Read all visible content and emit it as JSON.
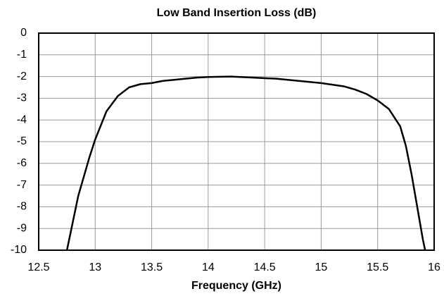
{
  "chart_data": {
    "type": "line",
    "title": "Low Band Insertion Loss (dB)",
    "x_label": "Frequency (GHz)",
    "x": [
      12.75,
      12.85,
      12.95,
      13.0,
      13.1,
      13.2,
      13.3,
      13.4,
      13.5,
      13.6,
      13.7,
      13.8,
      13.9,
      14.0,
      14.2,
      14.4,
      14.6,
      14.8,
      15.0,
      15.2,
      15.3,
      15.4,
      15.5,
      15.6,
      15.7,
      15.75,
      15.8,
      15.85,
      15.9,
      15.92
    ],
    "series": [
      {
        "name": "Insertion Loss",
        "color": "#000000",
        "values": [
          -10,
          -7.5,
          -5.7,
          -4.9,
          -3.6,
          -2.9,
          -2.5,
          -2.35,
          -2.3,
          -2.2,
          -2.15,
          -2.1,
          -2.05,
          -2.02,
          -2.0,
          -2.05,
          -2.1,
          -2.2,
          -2.3,
          -2.45,
          -2.6,
          -2.8,
          -3.1,
          -3.5,
          -4.3,
          -5.2,
          -6.5,
          -8,
          -9.5,
          -10
        ]
      }
    ],
    "xlim": [
      12.5,
      16
    ],
    "xticks": [
      12.5,
      13,
      13.5,
      14,
      14.5,
      15,
      15.5,
      16
    ],
    "ylim": [
      -10,
      0
    ],
    "yticks": [
      0,
      -1,
      -2,
      -3,
      -4,
      -5,
      -6,
      -7,
      -8,
      -9,
      -10
    ],
    "grid": true
  }
}
